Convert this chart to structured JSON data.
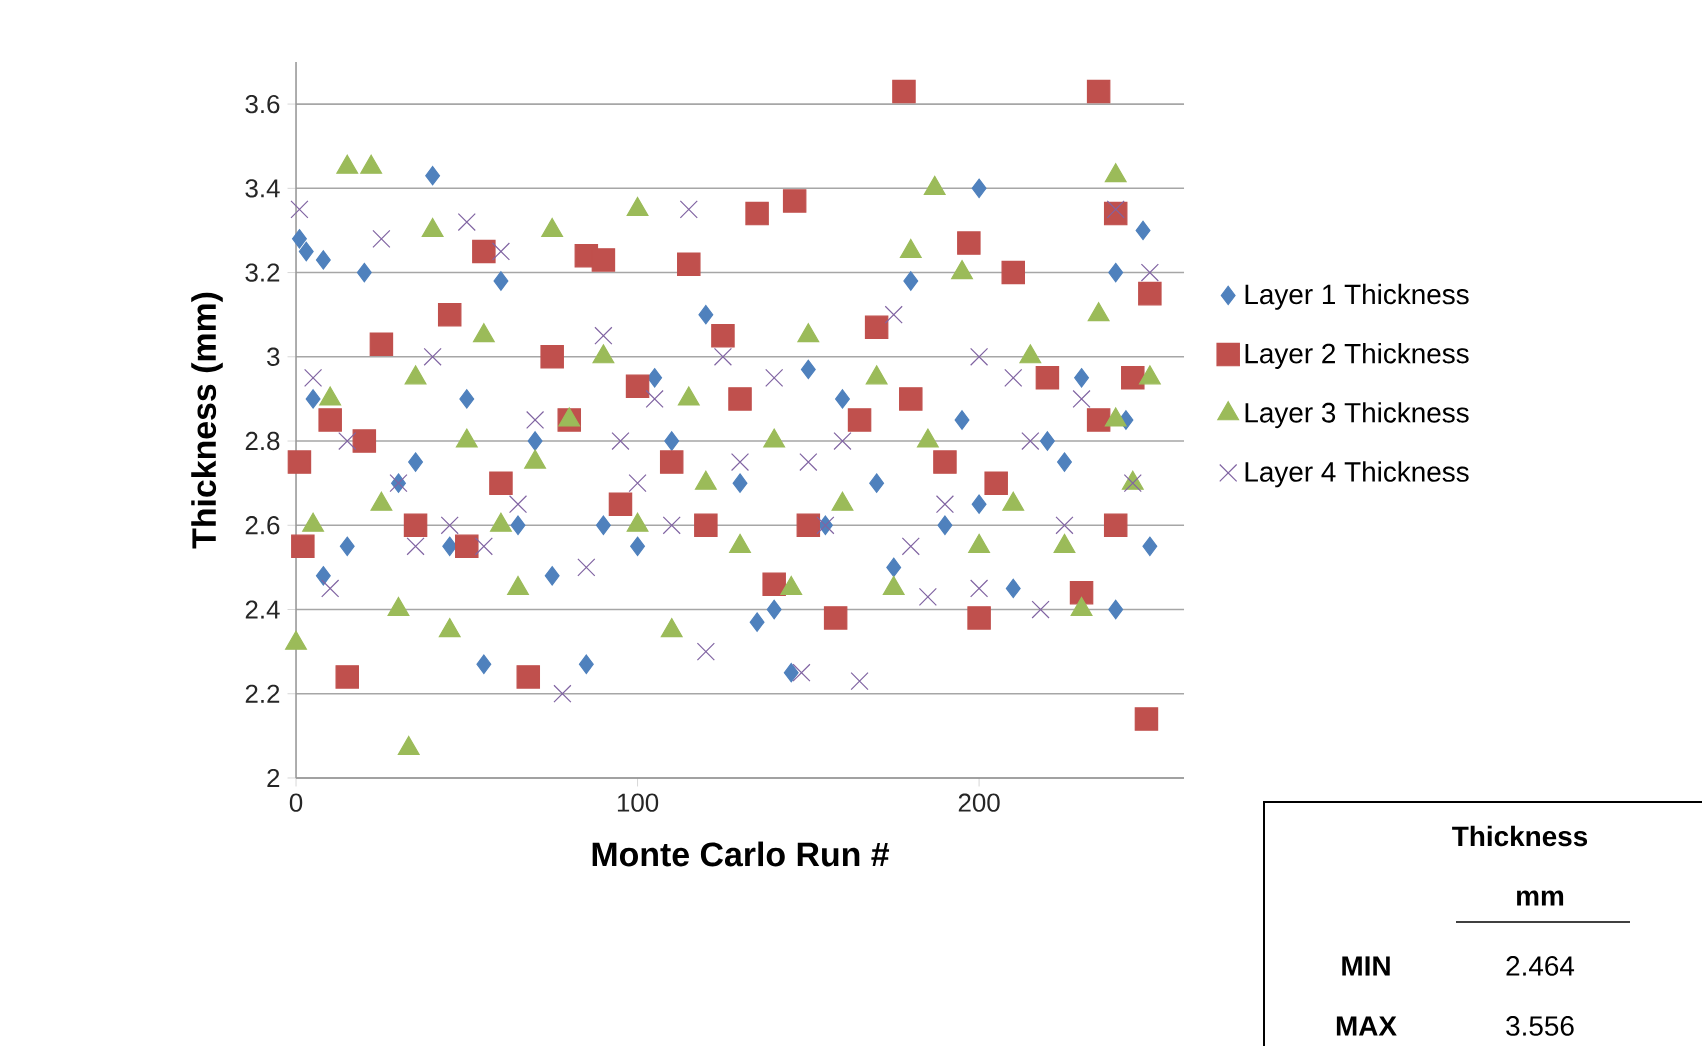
{
  "chart_data": {
    "type": "scatter",
    "xlabel": "Monte Carlo Run #",
    "ylabel": "Thickness (mm)",
    "xlim": [
      0,
      260
    ],
    "xticks": [
      0,
      100,
      200
    ],
    "ylim": [
      2,
      3.7
    ],
    "yticks": [
      2,
      2.2,
      2.4,
      2.6,
      2.8,
      3,
      3.2,
      3.4,
      3.6
    ],
    "grid": "y",
    "legend": "right",
    "annotations": [
      "Thickness",
      "mm",
      "MIN",
      "2.464",
      "MAX",
      "3.556"
    ],
    "series": [
      {
        "name": "Layer 1 Thickness",
        "color": "#4f81bd",
        "marker": "diamond",
        "x": [
          1,
          3,
          8,
          5,
          8,
          40,
          55,
          85,
          145,
          200,
          248,
          243,
          240,
          135,
          75,
          100,
          180,
          20,
          60,
          150,
          120,
          170,
          210,
          230,
          30,
          90,
          110,
          160,
          190,
          220,
          50,
          65,
          130,
          200,
          240,
          15,
          35,
          140,
          175,
          225,
          105,
          70,
          45,
          155,
          195,
          250
        ],
        "values": [
          3.28,
          3.25,
          3.23,
          2.9,
          2.48,
          3.43,
          2.27,
          2.27,
          2.25,
          3.4,
          3.3,
          2.85,
          2.4,
          2.37,
          2.48,
          2.55,
          3.18,
          3.2,
          3.18,
          2.97,
          3.1,
          2.7,
          2.45,
          2.95,
          2.7,
          2.6,
          2.8,
          2.9,
          2.6,
          2.8,
          2.9,
          2.6,
          2.7,
          2.65,
          3.2,
          2.55,
          2.75,
          2.4,
          2.5,
          2.75,
          2.95,
          2.8,
          2.55,
          2.6,
          2.85,
          2.55
        ]
      },
      {
        "name": "Layer 2 Thickness",
        "color": "#c0504d",
        "marker": "square",
        "x": [
          178,
          235,
          146,
          135,
          240,
          249,
          15,
          68,
          1,
          2,
          55,
          85,
          90,
          115,
          197,
          210,
          50,
          140,
          158,
          200,
          230,
          250,
          25,
          45,
          100,
          120,
          130,
          170,
          180,
          220,
          10,
          35,
          60,
          75,
          110,
          150,
          190,
          240,
          20,
          80,
          125,
          165,
          205,
          245,
          95,
          235
        ],
        "values": [
          3.63,
          3.63,
          3.37,
          3.34,
          3.34,
          2.14,
          2.24,
          2.24,
          2.75,
          2.55,
          3.25,
          3.24,
          3.23,
          3.22,
          3.27,
          3.2,
          2.55,
          2.46,
          2.38,
          2.38,
          2.44,
          3.15,
          3.03,
          3.1,
          2.93,
          2.6,
          2.9,
          3.07,
          2.9,
          2.95,
          2.85,
          2.6,
          2.7,
          3.0,
          2.75,
          2.6,
          2.75,
          2.6,
          2.8,
          2.85,
          3.05,
          2.85,
          2.7,
          2.95,
          2.65,
          2.85
        ]
      },
      {
        "name": "Layer 3 Thickness",
        "color": "#9bbb59",
        "marker": "triangle",
        "x": [
          15,
          22,
          33,
          0,
          100,
          187,
          240,
          30,
          45,
          110,
          145,
          175,
          230,
          75,
          40,
          250,
          10,
          25,
          50,
          60,
          70,
          90,
          115,
          130,
          150,
          160,
          185,
          200,
          215,
          225,
          245,
          5,
          35,
          55,
          80,
          120,
          140,
          170,
          195,
          210,
          235,
          65,
          100,
          180,
          240
        ],
        "values": [
          3.45,
          3.45,
          2.07,
          2.32,
          3.35,
          3.4,
          3.43,
          2.4,
          2.35,
          2.35,
          2.45,
          2.45,
          2.4,
          3.3,
          3.3,
          2.95,
          2.9,
          2.65,
          2.8,
          2.6,
          2.75,
          3.0,
          2.9,
          2.55,
          3.05,
          2.65,
          2.8,
          2.55,
          3.0,
          2.55,
          2.7,
          2.6,
          2.95,
          3.05,
          2.85,
          2.7,
          2.8,
          2.95,
          3.2,
          2.65,
          3.1,
          2.45,
          2.6,
          3.25,
          2.85
        ]
      },
      {
        "name": "Layer 4 Thickness",
        "color": "#8064a2",
        "marker": "cross",
        "x": [
          1,
          115,
          240,
          50,
          78,
          165,
          148,
          120,
          185,
          200,
          218,
          10,
          25,
          60,
          90,
          105,
          130,
          160,
          190,
          230,
          30,
          45,
          70,
          85,
          140,
          175,
          210,
          245,
          15,
          55,
          100,
          125,
          155,
          200,
          225,
          5,
          40,
          65,
          95,
          150,
          180,
          215,
          250,
          35,
          110
        ],
        "values": [
          3.35,
          3.35,
          3.35,
          3.32,
          2.2,
          2.23,
          2.25,
          2.3,
          2.43,
          2.45,
          2.4,
          2.45,
          3.28,
          3.25,
          3.05,
          2.9,
          2.75,
          2.8,
          2.65,
          2.9,
          2.7,
          2.6,
          2.85,
          2.5,
          2.95,
          3.1,
          2.95,
          2.7,
          2.8,
          2.55,
          2.7,
          3.0,
          2.6,
          3.0,
          2.6,
          2.95,
          3.0,
          2.65,
          2.8,
          2.75,
          2.55,
          2.8,
          3.2,
          2.55,
          2.6
        ]
      }
    ]
  }
}
